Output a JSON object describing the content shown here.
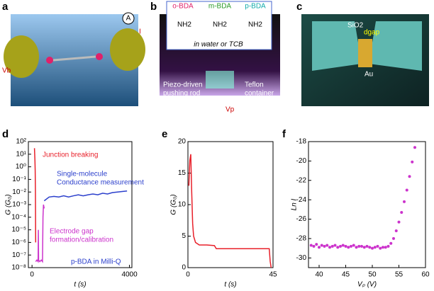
{
  "illustrations": {
    "a": {
      "letter": "a",
      "v_b": "Vb",
      "ammeter": "A",
      "current": "I"
    },
    "b": {
      "letter": "b",
      "molecules": [
        "o-BDA",
        "m-BDA",
        "p-BDA"
      ],
      "amine": "NH2",
      "solvent": "in water or TCB",
      "rod": [
        "Piezo-driven",
        "pushing rod"
      ],
      "container": [
        "Teflon",
        "container"
      ],
      "v_p": "Vp"
    },
    "c": {
      "letter": "c",
      "oxide": "SiO2",
      "gap": "dgap",
      "metal": "Au"
    }
  },
  "chart_data": [
    {
      "type": "line",
      "panel_label": "d",
      "log_y": true,
      "xlabel": "t (s)",
      "ylabel": "G (G₀)",
      "xlim": [
        -150,
        4100
      ],
      "xticks": [
        0,
        4000
      ],
      "ylim": [
        1e-08,
        100
      ],
      "yticks": [
        {
          "value": 1e-08,
          "label": "10⁻⁸"
        },
        {
          "value": 1e-07,
          "label": "10⁻⁷"
        },
        {
          "value": 1e-06,
          "label": "10⁻⁶"
        },
        {
          "value": 1e-05,
          "label": "10⁻⁵"
        },
        {
          "value": 0.0001,
          "label": "10⁻⁴"
        },
        {
          "value": 0.001,
          "label": "10⁻³"
        },
        {
          "value": 0.01,
          "label": "10⁻²"
        },
        {
          "value": 0.1,
          "label": "10⁻¹"
        },
        {
          "value": 1,
          "label": "10⁰"
        },
        {
          "value": 10,
          "label": "10¹"
        },
        {
          "value": 100,
          "label": "10²"
        }
      ],
      "series": [
        {
          "color": "#e8202a",
          "x": [
            100,
            110,
            120,
            130,
            140,
            150
          ],
          "values": [
            30,
            10,
            3,
            0.5,
            0.01,
            1e-06
          ]
        },
        {
          "color": "#cc33cc",
          "x": [
            150,
            200,
            250,
            260,
            270,
            320,
            380,
            430,
            450,
            470,
            500
          ],
          "values": [
            3e-08,
            4e-08,
            3e-08,
            1e-05,
            4e-08,
            3e-08,
            4e-08,
            3e-08,
            0.0001,
            0.001,
            0.0005
          ]
        },
        {
          "color": "#2b3fcc",
          "x": [
            500,
            700,
            900,
            1100,
            1300,
            1500,
            1700,
            1900,
            2100,
            2300,
            2500,
            2700,
            2900,
            3100,
            3300,
            3500,
            3700,
            3900
          ],
          "values": [
            0.002,
            0.004,
            0.0045,
            0.004,
            0.005,
            0.004,
            0.005,
            0.006,
            0.005,
            0.006,
            0.007,
            0.006,
            0.008,
            0.007,
            0.009,
            0.01,
            0.011,
            0.012
          ]
        }
      ],
      "annotations": [
        {
          "text": "Junction breaking",
          "color": "#e8202a"
        },
        {
          "text": "Single-molecule",
          "color": "#2b3fcc"
        },
        {
          "text": "Conductance measurement",
          "color": "#2b3fcc"
        },
        {
          "text": "Electrode gap",
          "color": "#cc33cc"
        },
        {
          "text": "formation/calibration",
          "color": "#cc33cc"
        },
        {
          "text": "p-BDA in Milli-Q",
          "color": "#2b3fcc"
        }
      ]
    },
    {
      "type": "line",
      "panel_label": "e",
      "xlabel": "t (s)",
      "ylabel": "G (G₀)",
      "xlim": [
        0,
        45
      ],
      "xticks": [
        0,
        45
      ],
      "ylim": [
        0,
        20
      ],
      "yticks": [
        0,
        5,
        10,
        15,
        20
      ],
      "series": [
        {
          "color": "#e8202a",
          "x": [
            0.5,
            1,
            1.5,
            2,
            2.5,
            3,
            4,
            6,
            10,
            14,
            15,
            20,
            30,
            40,
            43,
            43.5,
            44
          ],
          "values": [
            13,
            17,
            18,
            12,
            7,
            5,
            4,
            3.6,
            3.6,
            3.5,
            3,
            3,
            3,
            3,
            3,
            1,
            0
          ]
        }
      ]
    },
    {
      "type": "scatter",
      "panel_label": "f",
      "xlabel": "Vₚ (V)",
      "ylabel": "Ln I",
      "xlim": [
        38,
        60
      ],
      "xticks": [
        40,
        45,
        50,
        55,
        60
      ],
      "ylim": [
        -31,
        -18
      ],
      "yticks": [
        -30,
        -28,
        -26,
        -24,
        -22,
        -20,
        -18
      ],
      "series": [
        {
          "color": "#cc33cc",
          "x": [
            38.5,
            39,
            39.5,
            40,
            40.5,
            41,
            41.5,
            42,
            42.5,
            43,
            43.5,
            44,
            44.5,
            45,
            45.5,
            46,
            46.5,
            47,
            47.5,
            48,
            48.5,
            49,
            49.5,
            50,
            50.5,
            51,
            51.5,
            52,
            52.5,
            53,
            53.5,
            54,
            54.5,
            55,
            55.5,
            56,
            56.5,
            57,
            57.5,
            58
          ],
          "values": [
            -28.7,
            -28.8,
            -28.6,
            -28.9,
            -28.7,
            -28.8,
            -28.7,
            -28.9,
            -28.8,
            -28.7,
            -28.9,
            -28.8,
            -28.7,
            -28.8,
            -28.9,
            -28.8,
            -28.7,
            -28.9,
            -28.8,
            -28.8,
            -28.9,
            -28.8,
            -28.9,
            -29,
            -28.9,
            -28.8,
            -29,
            -28.9,
            -28.9,
            -28.8,
            -28.5,
            -28,
            -27.2,
            -26.3,
            -25.3,
            -24.2,
            -23,
            -21.6,
            -20.1,
            -18.6
          ]
        }
      ]
    }
  ]
}
